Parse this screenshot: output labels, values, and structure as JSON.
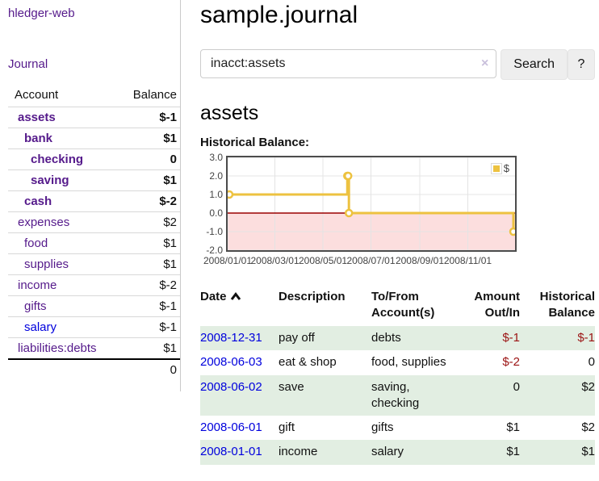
{
  "colors": {
    "link_purple": "#551a8b",
    "link_blue": "#0000dd",
    "neg_strong": "#9b1313",
    "neg_soft": "#b55c66",
    "row_green": "#e2eee2",
    "chart_gold": "#edc240",
    "chart_neg_fill": "#fcdede",
    "chart_zero_line": "#9a0000"
  },
  "sidebar": {
    "app_title": "hledger-web",
    "journal_link": "Journal",
    "accounts": {
      "headers": {
        "account": "Account",
        "balance": "Balance"
      },
      "rows": [
        {
          "name": "assets",
          "level": 1,
          "bold": true,
          "balance": "$-1",
          "balance_style": "neg-strong"
        },
        {
          "name": "bank",
          "level": 2,
          "bold": true,
          "balance": "$1"
        },
        {
          "name": "checking",
          "level": 3,
          "bold": true,
          "balance": "0"
        },
        {
          "name": "saving",
          "level": 3,
          "bold": true,
          "balance": "$1"
        },
        {
          "name": "cash",
          "level": 2,
          "bold": true,
          "balance": "$-2",
          "balance_style": "neg-strong"
        },
        {
          "name": "expenses",
          "level": 1,
          "bold": false,
          "balance": "$2"
        },
        {
          "name": "food",
          "level": 2,
          "bold": false,
          "balance": "$1"
        },
        {
          "name": "supplies",
          "level": 2,
          "bold": false,
          "balance": "$1"
        },
        {
          "name": "income",
          "level": 1,
          "bold": false,
          "balance": "$-2",
          "balance_style": "neg-soft"
        },
        {
          "name": "gifts",
          "level": 2,
          "bold": false,
          "balance": "$-1",
          "balance_style": "neg-soft"
        },
        {
          "name": "salary",
          "level": 2,
          "bold": false,
          "balance": "$-1",
          "balance_style": "neg-soft",
          "link_style": "blue"
        },
        {
          "name": "liabilities:debts",
          "level": 1,
          "bold": false,
          "balance": "$1"
        }
      ],
      "total": "0"
    }
  },
  "main": {
    "title": "sample.journal",
    "search": {
      "value": "inacct:assets",
      "clear_icon": "×",
      "search_button": "Search",
      "help_button": "?"
    },
    "account_heading": "assets",
    "chart_title": "Historical Balance:"
  },
  "chart_data": {
    "type": "line",
    "title": "Historical Balance:",
    "step": true,
    "series": [
      {
        "name": "$",
        "color": "#edc240",
        "points": [
          [
            "2008-01-01",
            1
          ],
          [
            "2008-06-01",
            2
          ],
          [
            "2008-06-02",
            2
          ],
          [
            "2008-06-03",
            0
          ],
          [
            "2008-12-31",
            -1
          ]
        ]
      }
    ],
    "xlim": [
      "2008-01-01",
      "2008-12-31"
    ],
    "ylim": [
      -2,
      3
    ],
    "x_ticks": [
      {
        "date": "2008-01-01",
        "label": "2008/01/01"
      },
      {
        "date": "2008-03-01",
        "label": "2008/03/01"
      },
      {
        "date": "2008-05-01",
        "label": "2008/05/01"
      },
      {
        "date": "2008-07-01",
        "label": "2008/07/01"
      },
      {
        "date": "2008-09-01",
        "label": "2008/09/01"
      },
      {
        "date": "2008-11-01",
        "label": "2008/11/01"
      }
    ],
    "y_ticks": [
      {
        "value": 3,
        "label": "3.0"
      },
      {
        "value": 2,
        "label": "2.0"
      },
      {
        "value": 1,
        "label": "1.0"
      },
      {
        "value": 0,
        "label": "0.0"
      },
      {
        "value": -1,
        "label": "-1.0"
      },
      {
        "value": -2,
        "label": "-2.0"
      }
    ],
    "grid": true,
    "legend": {
      "label": "$",
      "position": "top-right"
    },
    "negative_region": {
      "below": 0,
      "fill": "#fcdede",
      "line": "#9a0000"
    }
  },
  "register": {
    "headers": {
      "date": "Date",
      "description": "Description",
      "accounts": "To/From Account(s)",
      "amount": "Amount Out/In",
      "balance": "Historical Balance"
    },
    "sort": {
      "column": "date",
      "direction": "asc"
    },
    "rows": [
      {
        "date": "2008-12-31",
        "description": "pay off",
        "accounts": "debts",
        "amount": "$-1",
        "amount_style": "neg-strong",
        "balance": "$-1",
        "balance_style": "neg-strong"
      },
      {
        "date": "2008-06-03",
        "description": "eat & shop",
        "accounts": "food, supplies",
        "amount": "$-2",
        "amount_style": "neg-strong",
        "balance": "0"
      },
      {
        "date": "2008-06-02",
        "description": "save",
        "accounts": "saving, checking",
        "amount": "0",
        "balance": "$2"
      },
      {
        "date": "2008-06-01",
        "description": "gift",
        "accounts": "gifts",
        "amount": "$1",
        "balance": "$2"
      },
      {
        "date": "2008-01-01",
        "description": "income",
        "accounts": "salary",
        "amount": "$1",
        "balance": "$1"
      }
    ]
  }
}
